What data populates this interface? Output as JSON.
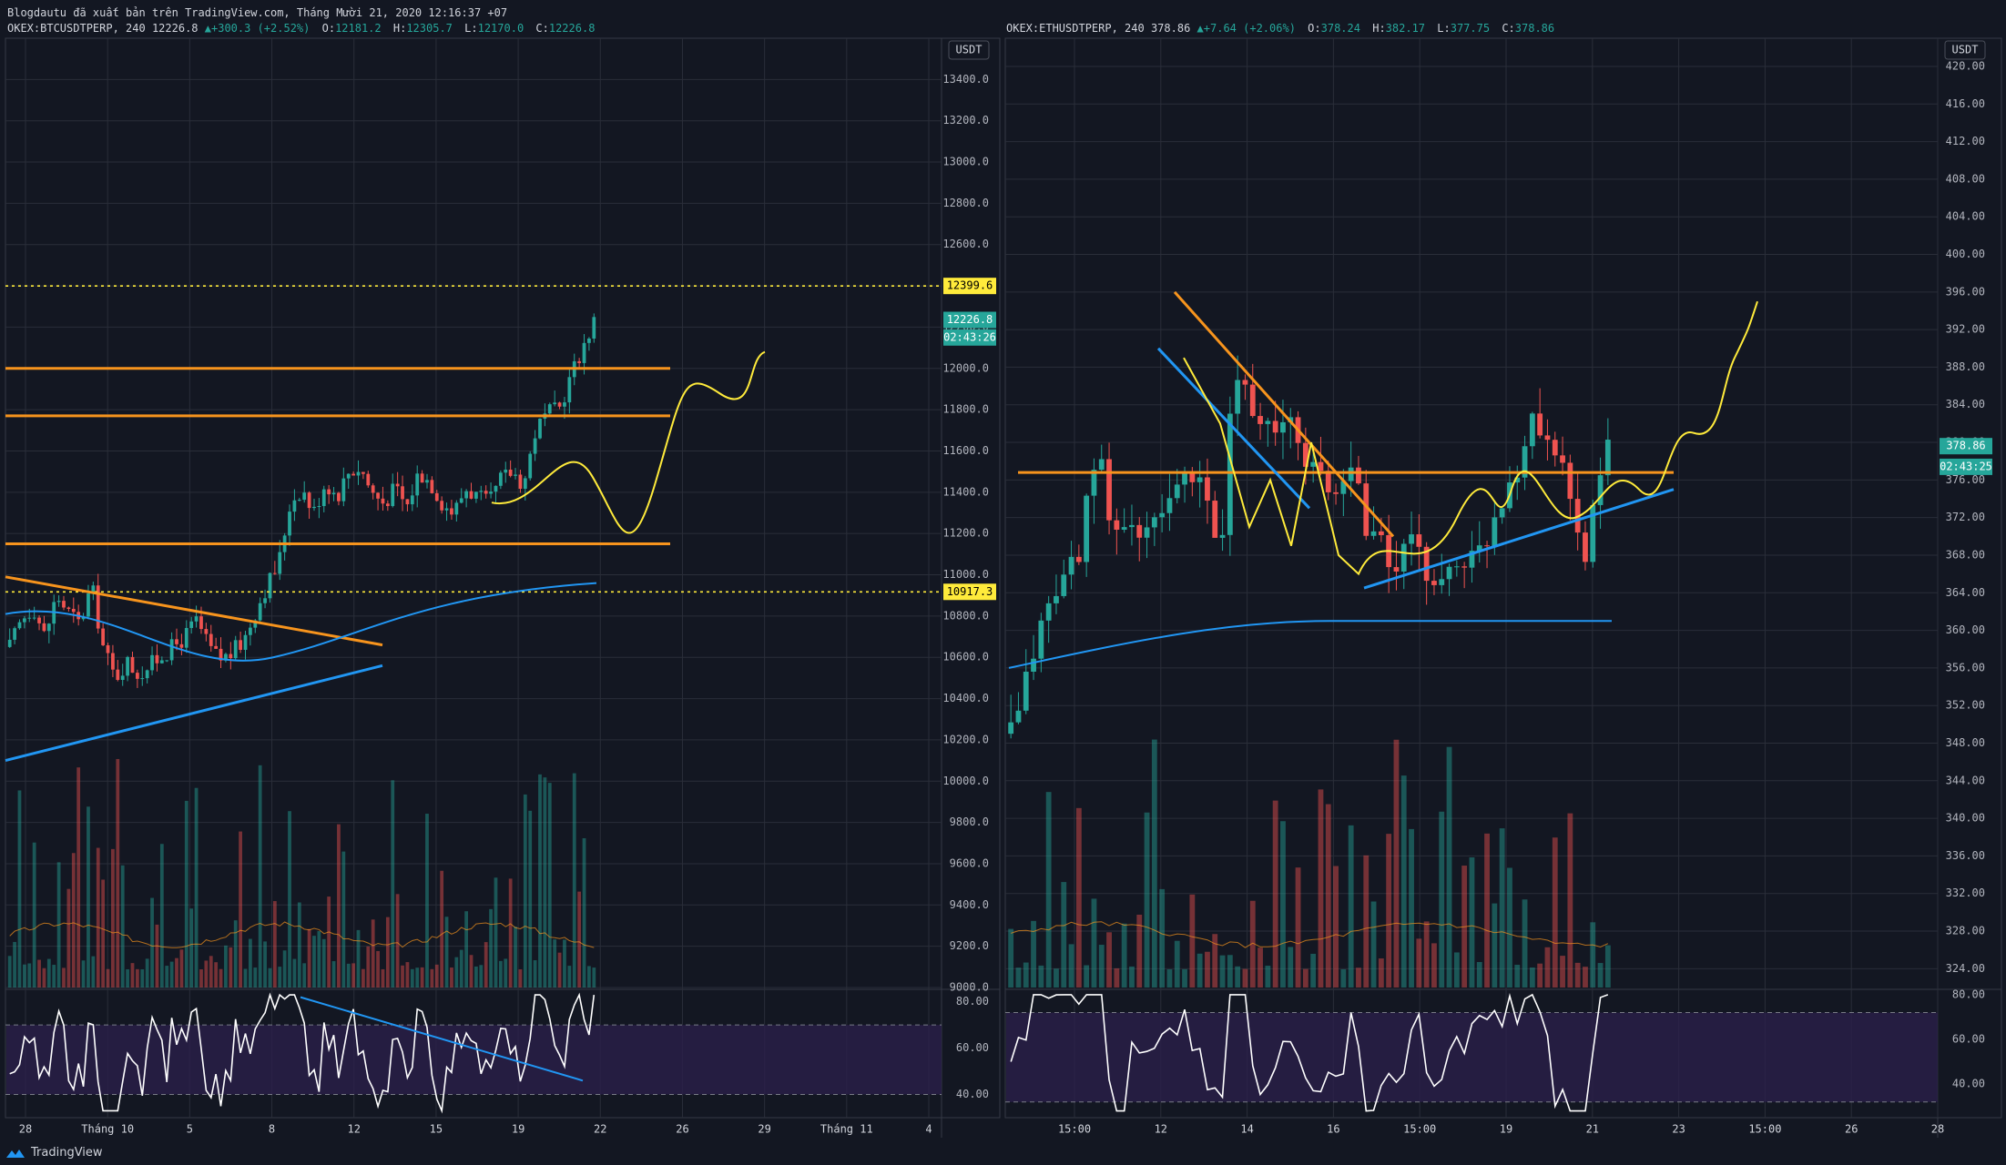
{
  "header": {
    "publisher_line": "Blogdautu đã xuất bản trên TradingView.com, Tháng Mười 21, 2020 12:16:37 +07",
    "left_symbol": "OKEX:BTCUSDTPERP, 240",
    "left_last": "12226.8",
    "left_change": "+300.3 (+2.52%)",
    "left_ohlc": {
      "o": "12181.2",
      "h": "12305.7",
      "l": "12170.0",
      "c": "12226.8"
    },
    "right_symbol": "OKEX:ETHUSDTPERP, 240",
    "right_last": "378.86",
    "right_change": "+7.64 (+2.06%)",
    "right_ohlc": {
      "o": "378.24",
      "h": "382.17",
      "l": "377.75",
      "c": "378.86"
    },
    "o_label": "O:",
    "h_label": "H:",
    "l_label": "L:",
    "c_label": "C:"
  },
  "footer": {
    "brand": "TradingView"
  },
  "colors": {
    "bg": "#131722",
    "grid": "#2a2e39",
    "up": "#26a69a",
    "down": "#ef5350",
    "orange": "#f7941d",
    "blue": "#2196f3",
    "yellow": "#ffeb3b",
    "rsi_band": "#2a1f4a"
  },
  "chart_data": [
    {
      "type": "candlestick",
      "symbol": "OKEX:BTCUSDTPERP",
      "interval": "240",
      "currency": "USDT",
      "ylim": [
        9000,
        13600
      ],
      "yticks": [
        9000,
        9200,
        9400,
        9600,
        9800,
        10000,
        10200,
        10400,
        10600,
        10800,
        11000,
        11200,
        11400,
        11600,
        11800,
        12000,
        12200,
        12400,
        12600,
        12800,
        13000,
        13200,
        13400
      ],
      "xticks": [
        "28",
        "Tháng 10",
        "5",
        "8",
        "12",
        "15",
        "19",
        "22",
        "26",
        "29",
        "Tháng 11",
        "4"
      ],
      "price_labels": {
        "level_high": "12399.6",
        "last": "12226.8",
        "countdown": "02:43:26",
        "level_low": "10917.3"
      },
      "close_path": [
        10650,
        10780,
        10850,
        10700,
        10900,
        10820,
        10760,
        10950,
        10650,
        10500,
        10580,
        10520,
        10560,
        10610,
        10650,
        10700,
        10780,
        10650,
        10590,
        10620,
        10680,
        10820,
        10950,
        11050,
        11350,
        11420,
        11300,
        11450,
        11380,
        11500,
        11520,
        11400,
        11350,
        11420,
        11330,
        11500,
        11450,
        11350,
        11300,
        11420,
        11380,
        11340,
        11460,
        11500,
        11440,
        11700,
        11780,
        11800,
        11960,
        12100,
        12226.8
      ],
      "horizontal_levels": [
        12000,
        11770,
        11150
      ],
      "dotted_levels": [
        12399.6,
        10917.3
      ],
      "rsi": {
        "ylim": [
          30,
          85
        ],
        "ticks": [
          "80.00",
          "60.00",
          "40.00"
        ],
        "band": [
          40,
          70
        ]
      }
    },
    {
      "type": "candlestick",
      "symbol": "OKEX:ETHUSDTPERP",
      "interval": "240",
      "currency": "USDT",
      "ylim": [
        322,
        423
      ],
      "yticks": [
        324,
        328,
        332,
        336,
        340,
        344,
        348,
        352,
        356,
        360,
        364,
        368,
        372,
        376,
        380,
        384,
        388,
        392,
        396,
        400,
        404,
        408,
        412,
        416,
        420
      ],
      "ytick_labels": [
        "324.00",
        "328.00",
        "332.00",
        "336.00",
        "340.00",
        "344.00",
        "348.00",
        "352.00",
        "356.00",
        "360.00",
        "364.00",
        "368.00",
        "372.00",
        "376.00",
        "380.00",
        "384.00",
        "388.00",
        "392.00",
        "396.00",
        "400.00",
        "404.00",
        "408.00",
        "412.00",
        "416.00",
        "420.00"
      ],
      "xticks": [
        "15:00",
        "12",
        "14",
        "16",
        "15:00",
        "19",
        "21",
        "23",
        "15:00",
        "26",
        "28"
      ],
      "price_labels": {
        "last": "378.86",
        "countdown": "02:43:25"
      },
      "close_path": [
        349,
        352,
        358,
        361,
        364,
        366,
        368,
        374,
        378,
        372,
        370,
        372,
        369,
        371,
        374,
        376,
        375,
        376,
        372,
        368,
        386,
        388,
        384,
        382,
        380,
        383,
        380,
        378,
        376,
        374,
        376,
        378,
        372,
        370,
        368,
        366,
        370,
        367,
        366,
        365,
        367,
        368,
        367,
        370,
        373,
        376,
        378,
        384,
        380,
        381,
        378,
        370,
        368,
        376,
        378.86
      ],
      "horizontal_levels": [
        376.8
      ],
      "rsi": {
        "ylim": [
          25,
          82
        ],
        "ticks": [
          "80.00",
          "60.00",
          "40.00"
        ],
        "band": [
          32,
          72
        ]
      }
    }
  ]
}
